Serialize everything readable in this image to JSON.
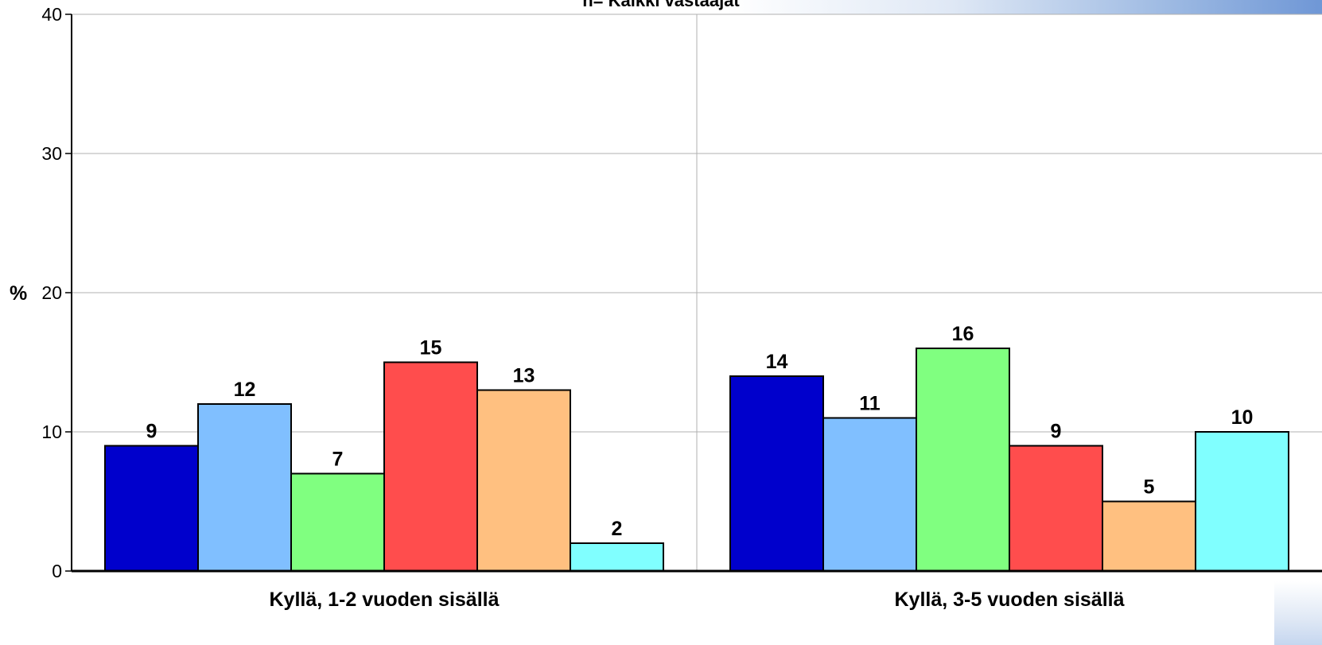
{
  "header": {
    "title": "n= Kaikki vastaajat"
  },
  "chart_data": {
    "type": "bar",
    "title": "n= Kaikki vastaajat",
    "ylabel": "%",
    "xlabel": "",
    "ylim": [
      0,
      40
    ],
    "yticks": [
      0,
      10,
      20,
      30,
      40
    ],
    "categories": [
      "Kyllä, 1-2 vuoden sisällä",
      "Kyllä, 3-5 vuoden sisällä"
    ],
    "series": [
      {
        "values": [
          9,
          14
        ],
        "color": "#0000cc"
      },
      {
        "values": [
          12,
          11
        ],
        "color": "#80bfff"
      },
      {
        "values": [
          7,
          16
        ],
        "color": "#80ff80"
      },
      {
        "values": [
          15,
          9
        ],
        "color": "#ff4d4d"
      },
      {
        "values": [
          13,
          5
        ],
        "color": "#ffc080"
      },
      {
        "values": [
          2,
          10
        ],
        "color": "#80ffff"
      }
    ],
    "grid": true,
    "legend": "none"
  }
}
